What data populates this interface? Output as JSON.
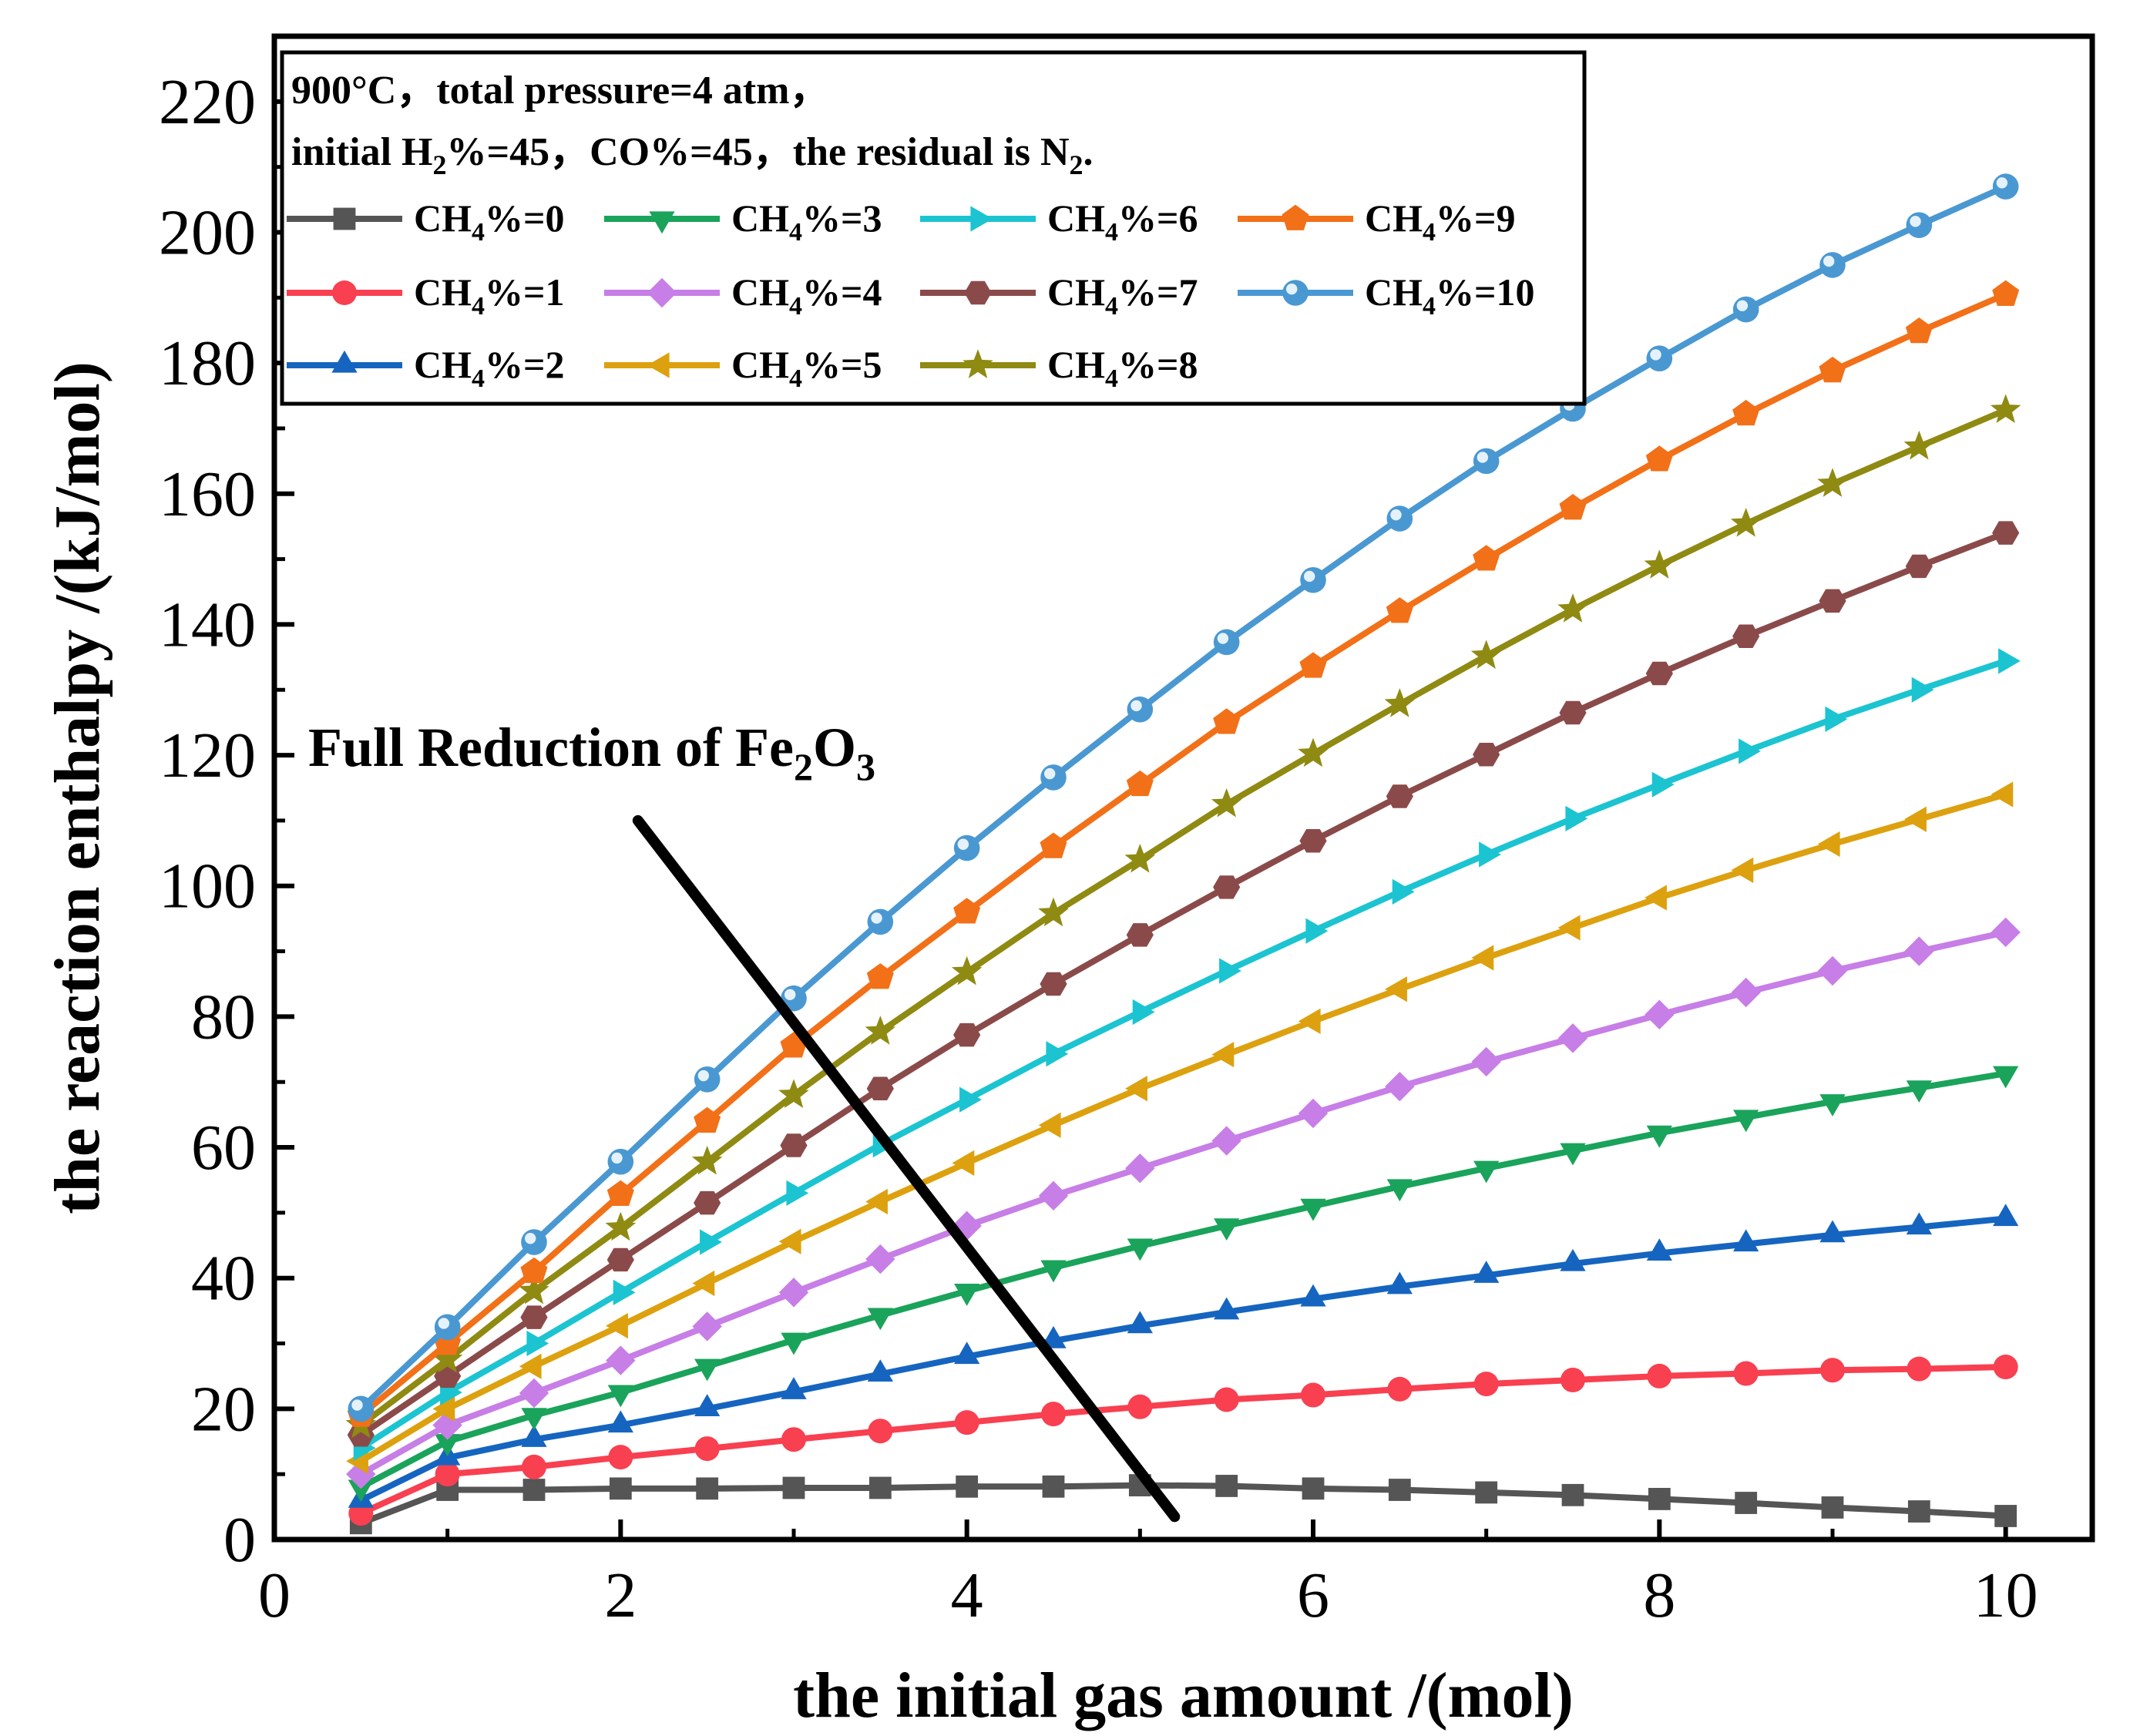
{
  "chart_data": {
    "type": "line",
    "xlabel": "the initial gas amount /(mol)",
    "ylabel": "the reaction enthalpy /(kJ/mol)",
    "xlim": [
      0,
      10.5
    ],
    "ylim": [
      0,
      230
    ],
    "xticks": [
      0,
      2,
      4,
      6,
      8,
      10
    ],
    "yticks": [
      0,
      20,
      40,
      60,
      80,
      100,
      120,
      140,
      160,
      180,
      200,
      220
    ],
    "x": [
      0.5,
      1,
      1.5,
      2,
      2.5,
      3,
      3.5,
      4,
      4.5,
      5,
      5.5,
      6,
      6.5,
      7,
      7.5,
      8,
      8.5,
      9,
      9.5,
      10
    ],
    "legend_conditions": {
      "line1": {
        "a": "900°C，total pressure=4 atm，"
      },
      "line2": {
        "a": "initial H",
        "b": "2",
        "c": "%=45，CO%=45，the residual is N",
        "d": "2",
        "e": "."
      }
    },
    "legend_placement": "top-left",
    "series": [
      {
        "label_main": "CH",
        "label_sub": "4",
        "label_tail": "%=0",
        "color": "#555555",
        "marker": "square",
        "values": [
          2.5,
          7.6,
          7.6,
          7.8,
          7.8,
          7.9,
          7.9,
          8.1,
          8.1,
          8.3,
          8.2,
          7.8,
          7.6,
          7.2,
          6.8,
          6.2,
          5.6,
          4.9,
          4.3,
          3.6
        ]
      },
      {
        "label_main": "CH",
        "label_sub": "4",
        "label_tail": "%=1",
        "color": "#f84050",
        "marker": "circle",
        "values": [
          4.0,
          10.0,
          11.1,
          12.6,
          13.9,
          15.3,
          16.6,
          17.9,
          19.2,
          20.3,
          21.4,
          22.1,
          23.0,
          23.8,
          24.4,
          25.0,
          25.4,
          25.9,
          26.1,
          26.4
        ]
      },
      {
        "label_main": "CH",
        "label_sub": "4",
        "label_tail": "%=2",
        "color": "#1565c0",
        "marker": "triangle-up",
        "values": [
          6.0,
          12.5,
          15.3,
          17.5,
          20.0,
          22.6,
          25.3,
          28.0,
          30.4,
          32.7,
          34.8,
          36.8,
          38.7,
          40.4,
          42.2,
          43.8,
          45.2,
          46.6,
          47.8,
          49.1
        ]
      },
      {
        "label_main": "CH",
        "label_sub": "4",
        "label_tail": "%=3",
        "color": "#1aa35a",
        "marker": "triangle-down",
        "values": [
          8.0,
          15.0,
          19.0,
          22.5,
          26.5,
          30.5,
          34.3,
          38.0,
          41.6,
          44.9,
          48.0,
          51.0,
          54.0,
          56.8,
          59.5,
          62.2,
          64.6,
          67.0,
          69.1,
          71.3
        ]
      },
      {
        "label_main": "CH",
        "label_sub": "4",
        "label_tail": "%=4",
        "color": "#c77ee6",
        "marker": "diamond",
        "values": [
          10.0,
          17.5,
          22.4,
          27.4,
          32.6,
          37.8,
          42.9,
          48.0,
          52.6,
          56.8,
          61.0,
          65.2,
          69.3,
          73.1,
          76.7,
          80.3,
          83.7,
          87.0,
          90.0,
          92.9
        ]
      },
      {
        "label_main": "CH",
        "label_sub": "4",
        "label_tail": "%=5",
        "color": "#dda10f",
        "marker": "triangle-left",
        "values": [
          12.0,
          20.0,
          26.5,
          32.7,
          39.2,
          45.6,
          51.7,
          57.6,
          63.4,
          69.0,
          74.2,
          79.3,
          84.2,
          89.0,
          93.6,
          98.2,
          102.4,
          106.4,
          110.2,
          114.0
        ]
      },
      {
        "label_main": "CH",
        "label_sub": "4",
        "label_tail": "%=6",
        "color": "#1cc4d1",
        "marker": "triangle-right",
        "values": [
          14.0,
          22.5,
          30.0,
          37.8,
          45.5,
          53.0,
          60.4,
          67.3,
          74.3,
          80.7,
          87.0,
          93.1,
          99.1,
          104.8,
          110.3,
          115.5,
          120.6,
          125.5,
          130.0,
          134.4
        ]
      },
      {
        "label_main": "CH",
        "label_sub": "4",
        "label_tail": "%=7",
        "color": "#8b4a4a",
        "marker": "hexagon",
        "values": [
          16.0,
          25.0,
          34.0,
          42.8,
          51.5,
          60.3,
          69.0,
          77.2,
          85.0,
          92.5,
          99.8,
          106.9,
          113.7,
          120.1,
          126.5,
          132.5,
          138.2,
          143.6,
          148.9,
          154.0
        ]
      },
      {
        "label_main": "CH",
        "label_sub": "4",
        "label_tail": "%=8",
        "color": "#8f8a12",
        "marker": "star",
        "values": [
          17.5,
          27.5,
          38.0,
          47.7,
          57.8,
          68.0,
          77.7,
          86.8,
          95.8,
          104.0,
          112.5,
          120.2,
          127.8,
          135.2,
          142.3,
          149.0,
          155.4,
          161.5,
          167.2,
          172.8
        ]
      },
      {
        "label_main": "CH",
        "label_sub": "4",
        "label_tail": "%=9",
        "color": "#f27018",
        "marker": "pentagon",
        "values": [
          19.0,
          30.0,
          41.0,
          52.8,
          64.0,
          75.5,
          86.0,
          96.0,
          106.0,
          115.5,
          125.0,
          133.6,
          142.0,
          150.0,
          157.8,
          165.2,
          172.2,
          178.8,
          184.8,
          190.5
        ]
      },
      {
        "label_main": "CH",
        "label_sub": "4",
        "label_tail": "%=10",
        "color": "#4a98d2",
        "marker": "sphere",
        "values": [
          20.0,
          32.5,
          45.5,
          57.8,
          70.4,
          82.8,
          94.5,
          105.8,
          116.6,
          127.0,
          137.3,
          146.8,
          156.2,
          165.0,
          173.0,
          180.7,
          188.2,
          195.0,
          201.1,
          207.0
        ]
      }
    ],
    "annotation": {
      "main": "Full Reduction of Fe",
      "sub1": "2",
      "mid": "O",
      "sub2": "3",
      "line_from": [
        5.2,
        3.5
      ],
      "line_to": [
        2.1,
        110
      ]
    }
  }
}
